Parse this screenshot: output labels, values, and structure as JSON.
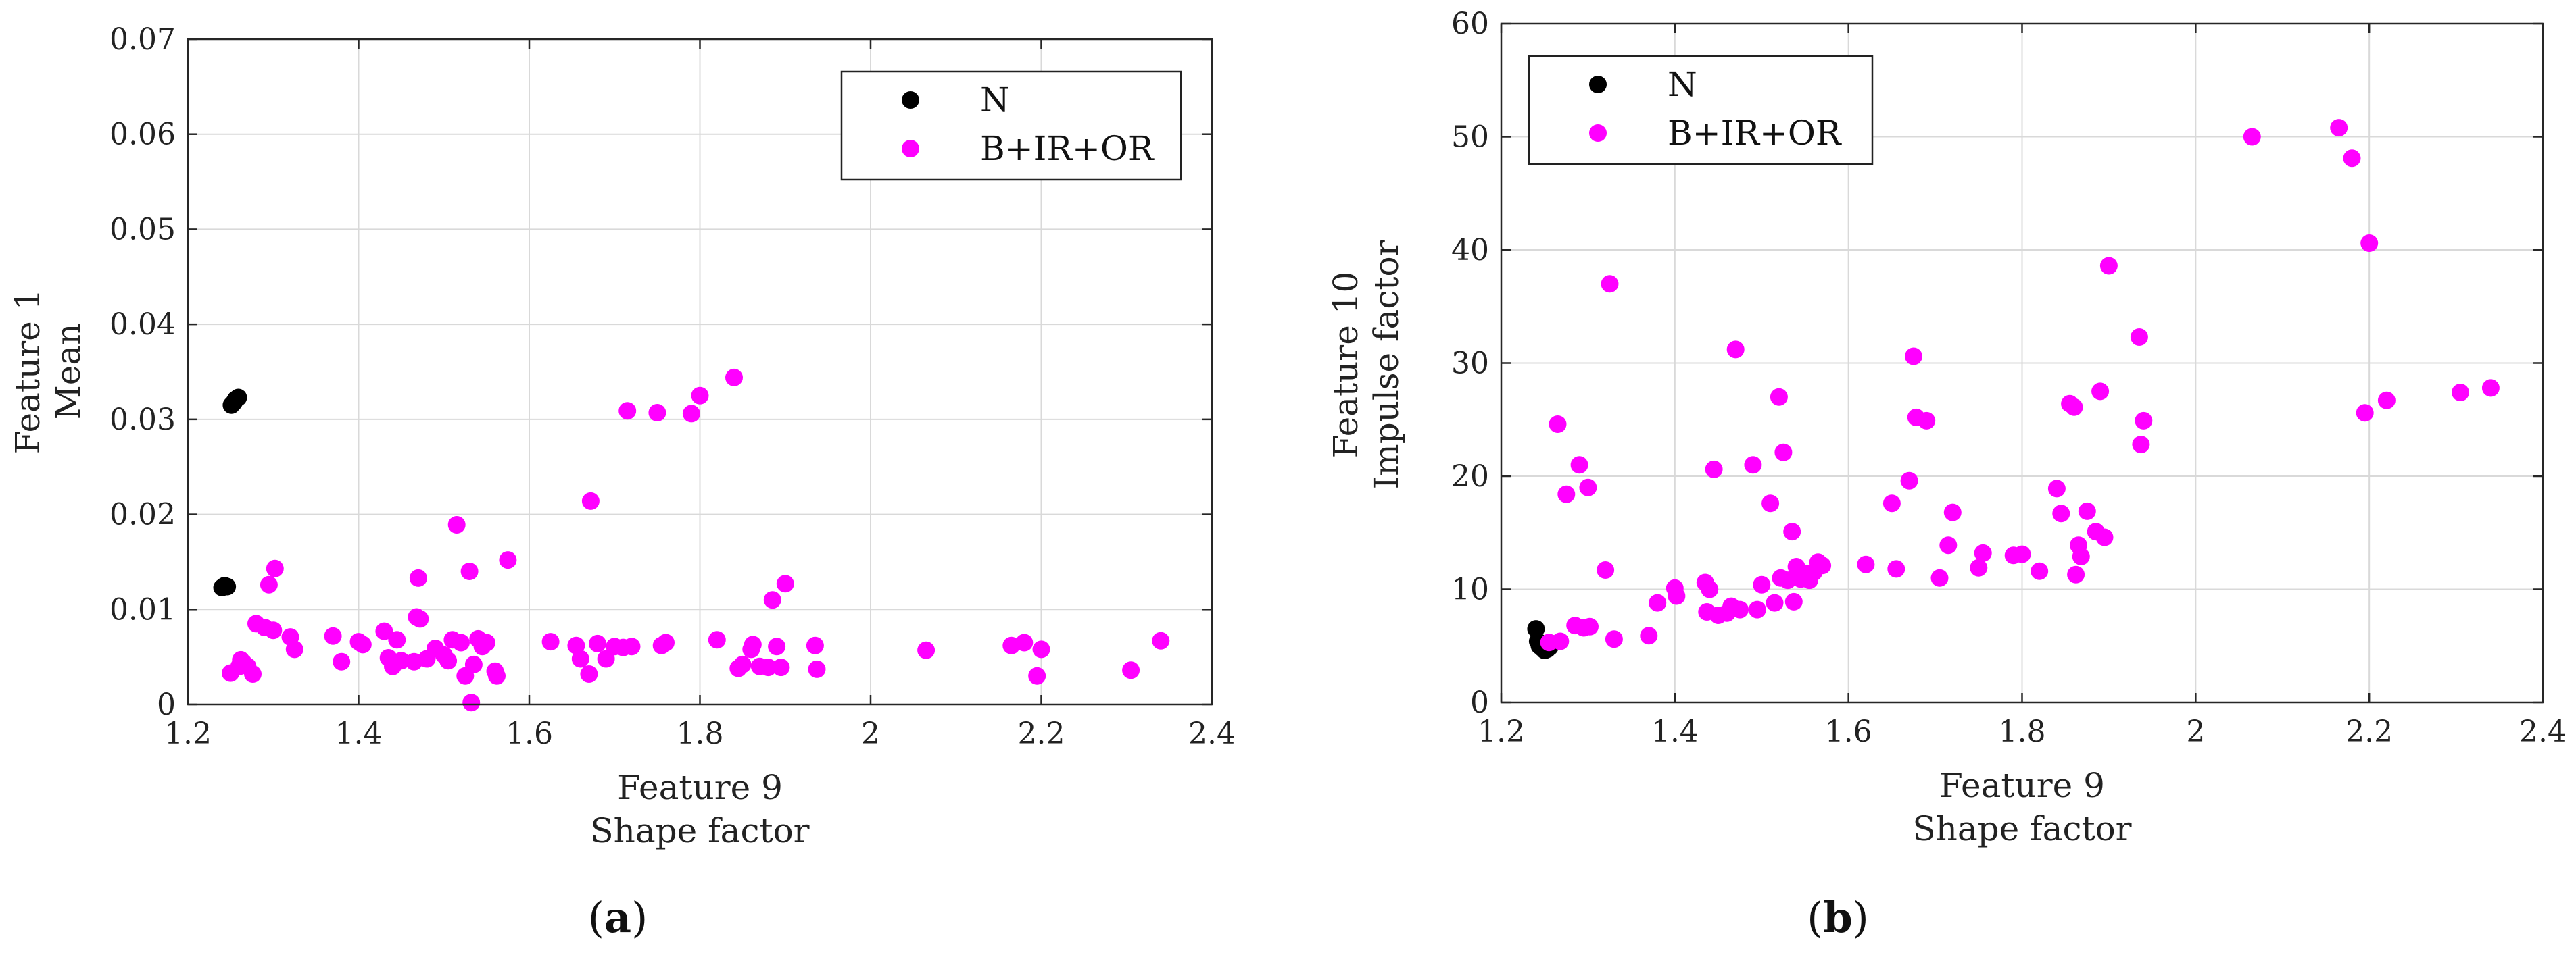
{
  "colors": {
    "N": "#000000",
    "B+IR+OR": "#ff00ff",
    "grid": "#d9d9d9",
    "axis": "#262626"
  },
  "chart_data": [
    {
      "id": "a",
      "type": "scatter",
      "caption": "(a)",
      "caption_letter": "a",
      "xlabel": [
        "Feature 9",
        "Shape factor"
      ],
      "ylabel": [
        "Feature 1",
        "Mean"
      ],
      "xlim": [
        1.2,
        2.4
      ],
      "ylim": [
        0,
        0.07
      ],
      "xticks": [
        1.2,
        1.4,
        1.6,
        1.8,
        2,
        2.2,
        2.4
      ],
      "xtick_labels": [
        "1.2",
        "1.4",
        "1.6",
        "1.8",
        "2",
        "2.2",
        "2.4"
      ],
      "yticks": [
        0,
        0.01,
        0.02,
        0.03,
        0.04,
        0.05,
        0.06,
        0.07
      ],
      "ytick_labels": [
        "0",
        "0.01",
        "0.02",
        "0.03",
        "0.04",
        "0.05",
        "0.06",
        "0.07"
      ],
      "grid": true,
      "legend_position": "top-right",
      "series": [
        {
          "name": "N",
          "color": "#000000",
          "points": [
            [
              1.24,
              0.0123
            ],
            [
              1.243,
              0.0125
            ],
            [
              1.246,
              0.0124
            ],
            [
              1.251,
              0.0315
            ],
            [
              1.254,
              0.0318
            ],
            [
              1.256,
              0.0321
            ],
            [
              1.259,
              0.0323
            ]
          ]
        },
        {
          "name": "B+IR+OR",
          "color": "#ff00ff",
          "points": [
            [
              1.25,
              0.0033
            ],
            [
              1.26,
              0.004
            ],
            [
              1.262,
              0.0047
            ],
            [
              1.265,
              0.0044
            ],
            [
              1.27,
              0.004
            ],
            [
              1.276,
              0.0032
            ],
            [
              1.28,
              0.0085
            ],
            [
              1.29,
              0.0081
            ],
            [
              1.295,
              0.0126
            ],
            [
              1.3,
              0.0078
            ],
            [
              1.302,
              0.0143
            ],
            [
              1.32,
              0.0071
            ],
            [
              1.325,
              0.0058
            ],
            [
              1.37,
              0.0072
            ],
            [
              1.38,
              0.0045
            ],
            [
              1.4,
              0.0066
            ],
            [
              1.405,
              0.0063
            ],
            [
              1.43,
              0.0077
            ],
            [
              1.435,
              0.0049
            ],
            [
              1.44,
              0.004
            ],
            [
              1.445,
              0.0068
            ],
            [
              1.45,
              0.0046
            ],
            [
              1.465,
              0.0045
            ],
            [
              1.468,
              0.0092
            ],
            [
              1.47,
              0.0133
            ],
            [
              1.472,
              0.009
            ],
            [
              1.48,
              0.0048
            ],
            [
              1.49,
              0.0059
            ],
            [
              1.5,
              0.0052
            ],
            [
              1.505,
              0.0046
            ],
            [
              1.51,
              0.0068
            ],
            [
              1.515,
              0.0189
            ],
            [
              1.52,
              0.0065
            ],
            [
              1.525,
              0.003
            ],
            [
              1.53,
              0.014
            ],
            [
              1.535,
              0.0042
            ],
            [
              1.54,
              0.0069
            ],
            [
              1.545,
              0.0061
            ],
            [
              1.55,
              0.0065
            ],
            [
              1.56,
              0.0035
            ],
            [
              1.562,
              0.003
            ],
            [
              1.575,
              0.0152
            ],
            [
              1.532,
              0.0002
            ],
            [
              1.625,
              0.0066
            ],
            [
              1.655,
              0.0062
            ],
            [
              1.66,
              0.0048
            ],
            [
              1.67,
              0.0032
            ],
            [
              1.672,
              0.0214
            ],
            [
              1.68,
              0.0064
            ],
            [
              1.69,
              0.0048
            ],
            [
              1.7,
              0.0061
            ],
            [
              1.71,
              0.006
            ],
            [
              1.715,
              0.0309
            ],
            [
              1.72,
              0.0061
            ],
            [
              1.75,
              0.0307
            ],
            [
              1.755,
              0.0062
            ],
            [
              1.76,
              0.0065
            ],
            [
              1.79,
              0.0306
            ],
            [
              1.8,
              0.0325
            ],
            [
              1.82,
              0.0068
            ],
            [
              1.84,
              0.0344
            ],
            [
              1.845,
              0.0038
            ],
            [
              1.85,
              0.0042
            ],
            [
              1.86,
              0.0058
            ],
            [
              1.862,
              0.0063
            ],
            [
              1.87,
              0.004
            ],
            [
              1.88,
              0.0039
            ],
            [
              1.885,
              0.011
            ],
            [
              1.89,
              0.0061
            ],
            [
              1.895,
              0.0039
            ],
            [
              1.9,
              0.0127
            ],
            [
              1.935,
              0.0062
            ],
            [
              1.937,
              0.0037
            ],
            [
              2.065,
              0.0057
            ],
            [
              2.165,
              0.0062
            ],
            [
              2.18,
              0.0065
            ],
            [
              2.195,
              0.003
            ],
            [
              2.2,
              0.0058
            ],
            [
              2.305,
              0.0036
            ],
            [
              2.34,
              0.0067
            ]
          ]
        }
      ]
    },
    {
      "id": "b",
      "type": "scatter",
      "caption": "(b)",
      "caption_letter": "b",
      "xlabel": [
        "Feature 9",
        "Shape factor"
      ],
      "ylabel": [
        "Feature 10",
        "Impulse factor"
      ],
      "xlim": [
        1.2,
        2.4
      ],
      "ylim": [
        0,
        60
      ],
      "xticks": [
        1.2,
        1.4,
        1.6,
        1.8,
        2,
        2.2,
        2.4
      ],
      "xtick_labels": [
        "1.2",
        "1.4",
        "1.6",
        "1.8",
        "2",
        "2.2",
        "2.4"
      ],
      "yticks": [
        0,
        10,
        20,
        30,
        40,
        50,
        60
      ],
      "ytick_labels": [
        "0",
        "10",
        "20",
        "30",
        "40",
        "50",
        "60"
      ],
      "grid": true,
      "legend_position": "top-left",
      "series": [
        {
          "name": "N",
          "color": "#000000",
          "points": [
            [
              1.24,
              6.5
            ],
            [
              1.242,
              5.4
            ],
            [
              1.244,
              5.0
            ],
            [
              1.247,
              4.8
            ],
            [
              1.25,
              4.6
            ],
            [
              1.253,
              4.7
            ],
            [
              1.256,
              4.9
            ],
            [
              1.258,
              5.2
            ]
          ]
        },
        {
          "name": "B+IR+OR",
          "color": "#ff00ff",
          "points": [
            [
              1.255,
              5.3
            ],
            [
              1.265,
              24.6
            ],
            [
              1.268,
              5.4
            ],
            [
              1.275,
              18.4
            ],
            [
              1.285,
              6.8
            ],
            [
              1.29,
              21.0
            ],
            [
              1.295,
              6.6
            ],
            [
              1.3,
              19.0
            ],
            [
              1.302,
              6.7
            ],
            [
              1.32,
              11.7
            ],
            [
              1.325,
              37.0
            ],
            [
              1.33,
              5.6
            ],
            [
              1.37,
              5.9
            ],
            [
              1.38,
              8.8
            ],
            [
              1.4,
              10.1
            ],
            [
              1.402,
              9.4
            ],
            [
              1.435,
              10.6
            ],
            [
              1.437,
              8.0
            ],
            [
              1.44,
              10.0
            ],
            [
              1.445,
              20.6
            ],
            [
              1.45,
              7.7
            ],
            [
              1.46,
              7.9
            ],
            [
              1.465,
              8.5
            ],
            [
              1.47,
              31.2
            ],
            [
              1.475,
              8.2
            ],
            [
              1.49,
              21.0
            ],
            [
              1.495,
              8.2
            ],
            [
              1.5,
              10.4
            ],
            [
              1.51,
              17.6
            ],
            [
              1.515,
              8.8
            ],
            [
              1.52,
              27.0
            ],
            [
              1.522,
              11.0
            ],
            [
              1.525,
              22.1
            ],
            [
              1.53,
              10.8
            ],
            [
              1.535,
              15.1
            ],
            [
              1.537,
              8.9
            ],
            [
              1.54,
              12.0
            ],
            [
              1.545,
              10.9
            ],
            [
              1.55,
              11.4
            ],
            [
              1.555,
              10.8
            ],
            [
              1.56,
              11.5
            ],
            [
              1.565,
              12.4
            ],
            [
              1.57,
              12.1
            ],
            [
              1.62,
              12.2
            ],
            [
              1.65,
              17.6
            ],
            [
              1.655,
              11.8
            ],
            [
              1.67,
              19.6
            ],
            [
              1.675,
              30.6
            ],
            [
              1.678,
              25.2
            ],
            [
              1.69,
              24.9
            ],
            [
              1.705,
              11.0
            ],
            [
              1.715,
              13.9
            ],
            [
              1.72,
              16.8
            ],
            [
              1.75,
              11.9
            ],
            [
              1.755,
              13.2
            ],
            [
              1.79,
              13.0
            ],
            [
              1.8,
              13.1
            ],
            [
              1.82,
              11.6
            ],
            [
              1.84,
              18.9
            ],
            [
              1.845,
              16.7
            ],
            [
              1.855,
              26.4
            ],
            [
              1.86,
              26.1
            ],
            [
              1.862,
              11.3
            ],
            [
              1.865,
              13.9
            ],
            [
              1.868,
              12.9
            ],
            [
              1.875,
              16.9
            ],
            [
              1.885,
              15.1
            ],
            [
              1.89,
              27.5
            ],
            [
              1.895,
              14.6
            ],
            [
              1.9,
              38.6
            ],
            [
              1.935,
              32.3
            ],
            [
              1.937,
              22.8
            ],
            [
              1.94,
              24.9
            ],
            [
              2.065,
              50.0
            ],
            [
              2.165,
              50.8
            ],
            [
              2.18,
              48.1
            ],
            [
              2.195,
              25.6
            ],
            [
              2.2,
              40.6
            ],
            [
              2.22,
              26.7
            ],
            [
              2.305,
              27.4
            ],
            [
              2.34,
              27.8
            ]
          ]
        }
      ]
    }
  ]
}
